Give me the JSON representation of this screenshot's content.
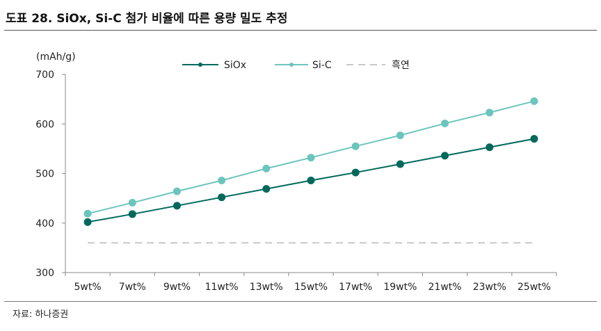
{
  "figure_title": "도표 28. SiOx, Si-C 첨가 비율에 따른 용량 밀도 추정",
  "source": "자료: 하나증권",
  "chart_data": {
    "type": "line",
    "title": "",
    "xlabel": "",
    "ylabel": "(mAh/g)",
    "ylim": [
      300,
      700
    ],
    "yticks": [
      300,
      400,
      500,
      600,
      700
    ],
    "categories": [
      "5wt%",
      "7wt%",
      "9wt%",
      "11wt%",
      "13wt%",
      "15wt%",
      "17wt%",
      "19wt%",
      "21wt%",
      "23wt%",
      "25wt%"
    ],
    "grid": false,
    "legend_position": "top-center",
    "series": [
      {
        "name": "SiOx",
        "color": "#00695c",
        "style": "solid",
        "marker": true,
        "values": [
          402,
          418,
          435,
          452,
          469,
          486,
          502,
          519,
          536,
          553,
          570
        ]
      },
      {
        "name": "Si-C",
        "color": "#6cc5bd",
        "style": "solid",
        "marker": true,
        "values": [
          419,
          441,
          464,
          486,
          510,
          532,
          555,
          577,
          601,
          623,
          646
        ]
      },
      {
        "name": "흑연",
        "color": "#c8c8c8",
        "style": "dashed",
        "marker": false,
        "values": [
          360,
          360,
          360,
          360,
          360,
          360,
          360,
          360,
          360,
          360,
          360
        ]
      }
    ]
  }
}
